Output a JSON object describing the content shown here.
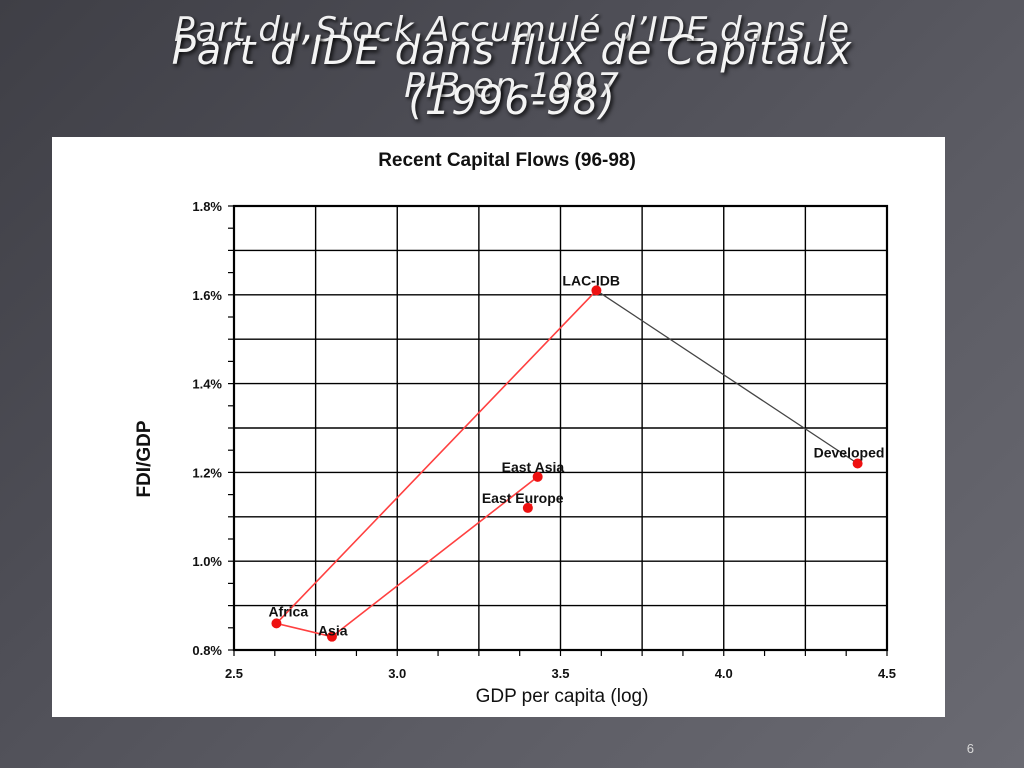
{
  "slide": {
    "title_back_line1": "Part du Stock Accumulé d’IDE dans le",
    "title_back_line2": "PIB en 1997",
    "title_front_line1": "Part d’IDE dans flux de Capitaux",
    "title_front_line2": "(1996-98)",
    "page_number": "6"
  },
  "colors": {
    "accent_line": "#ff4040",
    "point": "#ee1111",
    "grey_line": "#444444",
    "grid": "#000000"
  },
  "chart_data": {
    "type": "scatter",
    "title": "Recent Capital Flows (96-98)",
    "xlabel": "GDP per capita (log)",
    "ylabel": "FDI/GDP",
    "xlim": [
      2.5,
      4.5
    ],
    "ylim": [
      0.8,
      1.8
    ],
    "x_ticks": [
      "2.5",
      "3.0",
      "3.5",
      "4.0",
      "4.5"
    ],
    "x_tick_values": [
      2.5,
      3.0,
      3.5,
      4.0,
      4.5
    ],
    "y_ticks": [
      "0.8%",
      "1.0%",
      "1.2%",
      "1.4%",
      "1.6%",
      "1.8%"
    ],
    "y_tick_values": [
      0.8,
      1.0,
      1.2,
      1.4,
      1.6,
      1.8
    ],
    "grid": true,
    "points": [
      {
        "label": "Africa",
        "x": 2.63,
        "y": 0.86
      },
      {
        "label": "Asia",
        "x": 2.8,
        "y": 0.83
      },
      {
        "label": "East Asia",
        "x": 3.43,
        "y": 1.19
      },
      {
        "label": "East Europe",
        "x": 3.4,
        "y": 1.12
      },
      {
        "label": "LAC-IDB",
        "x": 3.61,
        "y": 1.61
      },
      {
        "label": "Developed",
        "x": 4.41,
        "y": 1.22
      }
    ],
    "red_path": [
      "East Asia",
      "Asia",
      "Africa",
      "LAC-IDB"
    ],
    "grey_path": [
      "LAC-IDB",
      "Developed"
    ]
  }
}
